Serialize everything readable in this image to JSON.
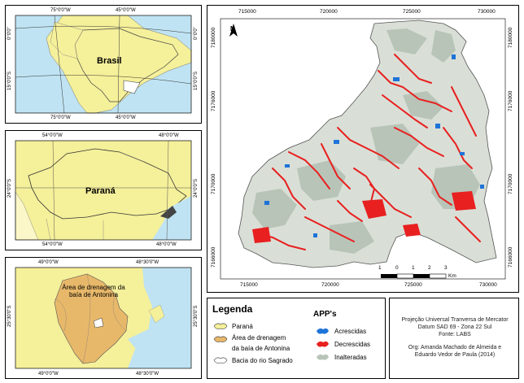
{
  "inset_brasil": {
    "label": "Brasil",
    "top_ticks": [
      "75°0'0\"W",
      "45°0'0\"W"
    ],
    "bottom_ticks": [
      "75°0'0\"W",
      "45°0'0\"W"
    ],
    "left_ticks": [
      "0°0'0\"",
      "15°0'0\"S"
    ],
    "right_ticks": [
      "0°0'0\"",
      "15°0'0\"S"
    ]
  },
  "inset_parana": {
    "label": "Paraná",
    "top_ticks": [
      "54°0'0\"W",
      "48°0'0\"W"
    ],
    "bottom_ticks": [
      "54°0'0\"W",
      "48°0'0\"W"
    ],
    "left_ticks": [
      "24°0'0\"S"
    ],
    "right_ticks": [
      "24°0'0\"S"
    ]
  },
  "inset_antonina": {
    "label": "Área de drenagem da baía de Antonina",
    "top_ticks": [
      "49°0'0\"W",
      "48°30'0\"W"
    ],
    "bottom_ticks": [
      "49°0'0\"W",
      "48°30'0\"W"
    ],
    "left_ticks": [
      "25°30'0\"S"
    ],
    "right_ticks": [
      "25°30'0\"S"
    ]
  },
  "main_map": {
    "x_ticks": [
      "715000",
      "720000",
      "725000",
      "730000"
    ],
    "y_ticks": [
      "7180000",
      "7176000",
      "7170000",
      "7166000"
    ],
    "north_label": "N",
    "scale_labels": [
      "1",
      "0",
      "1",
      "2",
      "3"
    ],
    "scale_unit": "Km"
  },
  "legend": {
    "title": "Legenda",
    "items": [
      {
        "label": "Paraná",
        "color": "#f5f09a"
      },
      {
        "label": "Área de drenagem",
        "color": "#e8b86a"
      },
      {
        "label": "da baía de Antonina",
        "color": ""
      },
      {
        "label": "Bacia do rio Sagrado",
        "color": "#ffffff"
      }
    ]
  },
  "apps": {
    "title": "APP's",
    "items": [
      {
        "label": "Acrescidas",
        "color": "#1e73d8"
      },
      {
        "label": "Decrescidas",
        "color": "#e82020"
      },
      {
        "label": "Inalteradas",
        "color": "#b8c4b8"
      }
    ]
  },
  "credits": {
    "line1": "Projeção Universal Tranversa de Mercator",
    "line2": "Datum SAD 69 - Zona 22 Sul",
    "line3": "Fonte: LABS",
    "line4": "Org: Amanda Machado de Almeida e",
    "line5": "Eduardo Vedor de Paula (2014)"
  },
  "colors": {
    "land": "#f5f09a",
    "ocean": "#bfe3f2",
    "drainage": "#e8b86a",
    "app_red": "#e82020",
    "app_gray": "#b8c4b8",
    "app_blue": "#1e73d8"
  }
}
